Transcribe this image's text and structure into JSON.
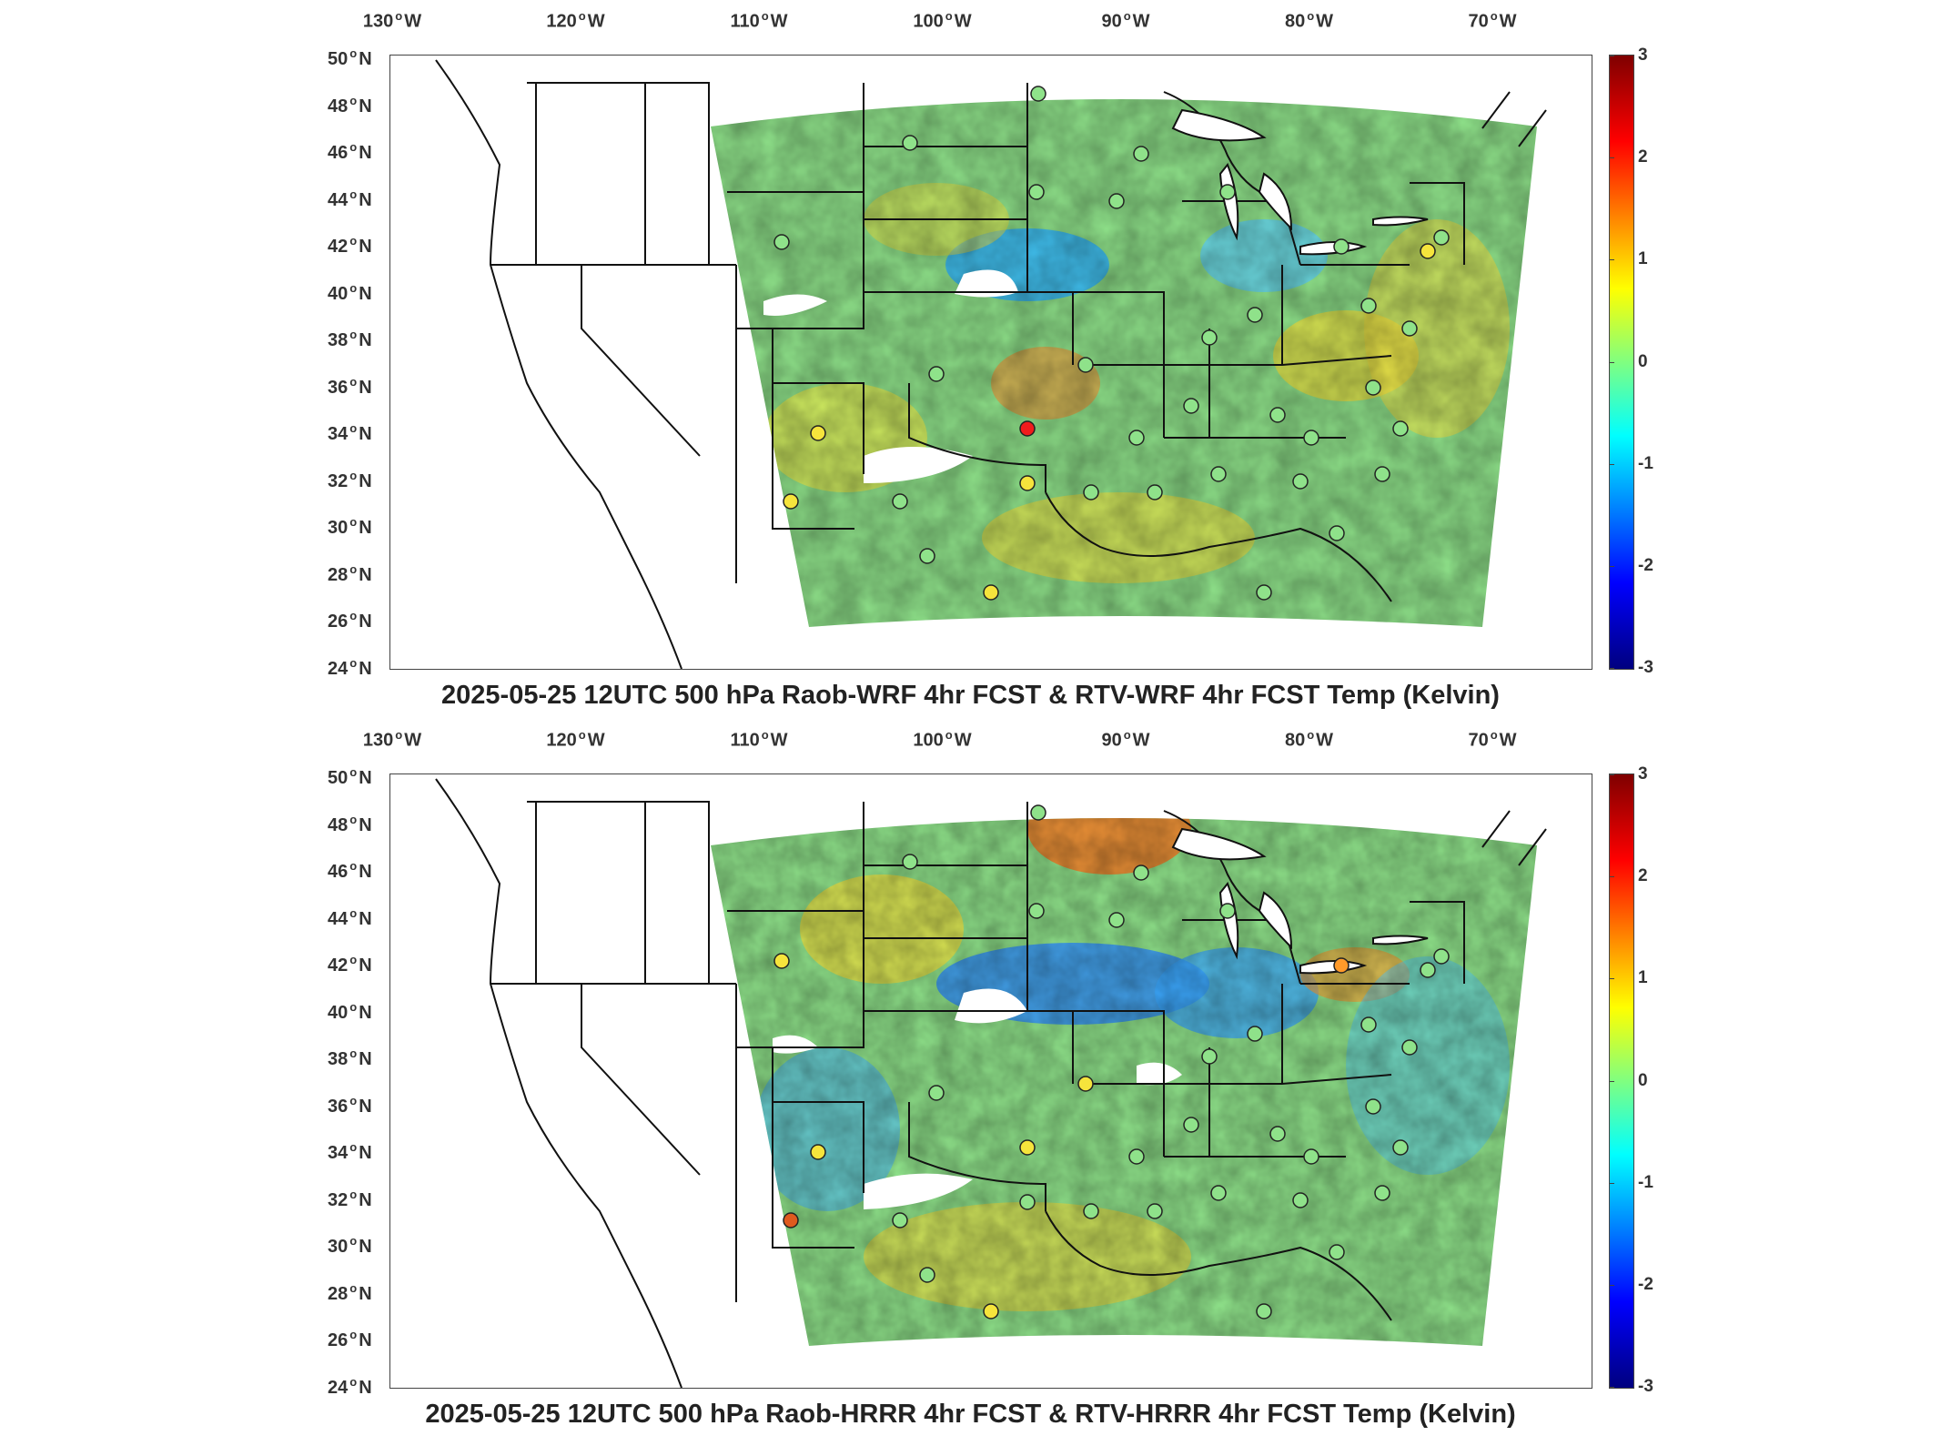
{
  "panels": [
    {
      "id": "wrf",
      "title": "2025-05-25 12UTC 500 hPa Raob-WRF 4hr FCST & RTV-WRF 4hr FCST Temp (Kelvin)",
      "colorbar_ticks": [
        "3",
        "2",
        "1",
        "0",
        "-1",
        "-2",
        "-3"
      ]
    },
    {
      "id": "hrrr",
      "title": "2025-05-25 12UTC 500 hPa Raob-HRRR 4hr FCST & RTV-HRRR 4hr FCST Temp (Kelvin)",
      "colorbar_ticks": [
        "3",
        "2",
        "1",
        "0",
        "-1",
        "-2",
        "-3"
      ]
    }
  ],
  "lon_labels": [
    {
      "num": "130",
      "dir": "W"
    },
    {
      "num": "120",
      "dir": "W"
    },
    {
      "num": "110",
      "dir": "W"
    },
    {
      "num": "100",
      "dir": "W"
    },
    {
      "num": "90",
      "dir": "W"
    },
    {
      "num": "80",
      "dir": "W"
    },
    {
      "num": "70",
      "dir": "W"
    }
  ],
  "lat_labels": [
    {
      "num": "50",
      "dir": "N"
    },
    {
      "num": "48",
      "dir": "N"
    },
    {
      "num": "46",
      "dir": "N"
    },
    {
      "num": "44",
      "dir": "N"
    },
    {
      "num": "42",
      "dir": "N"
    },
    {
      "num": "40",
      "dir": "N"
    },
    {
      "num": "38",
      "dir": "N"
    },
    {
      "num": "36",
      "dir": "N"
    },
    {
      "num": "34",
      "dir": "N"
    },
    {
      "num": "32",
      "dir": "N"
    },
    {
      "num": "30",
      "dir": "N"
    },
    {
      "num": "28",
      "dir": "N"
    },
    {
      "num": "26",
      "dir": "N"
    },
    {
      "num": "24",
      "dir": "N"
    }
  ],
  "colorbar": {
    "min": -3,
    "max": 3,
    "colormap": [
      "#7f0000",
      "#ff0000",
      "#ff8000",
      "#ffff00",
      "#80ff80",
      "#00ffff",
      "#0080ff",
      "#0000ff",
      "#00007f"
    ]
  },
  "colors": {
    "domain_fill": "#8fe28a",
    "land": "#ffffff",
    "boundary": "#111111"
  }
}
